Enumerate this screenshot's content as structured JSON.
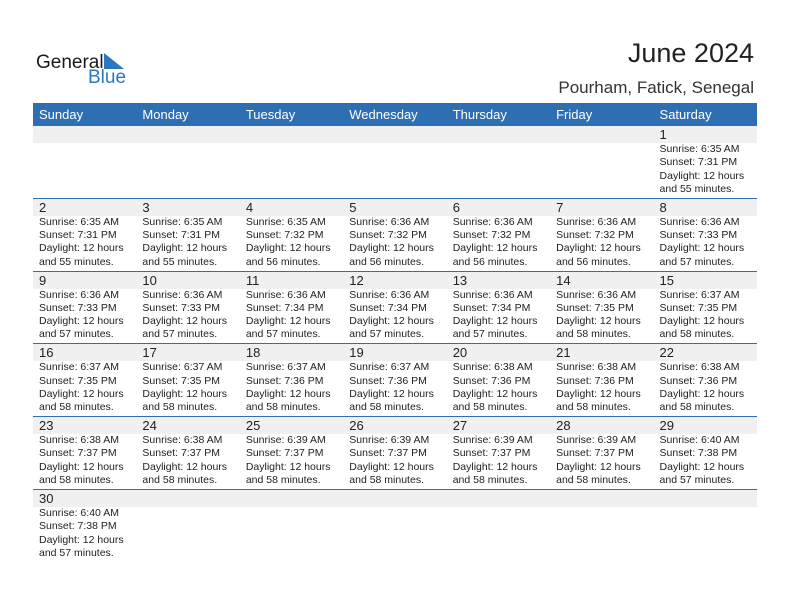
{
  "logo": {
    "general": "General",
    "blue": "Blue"
  },
  "header": {
    "title": "June 2024",
    "location": "Pourham, Fatick, Senegal"
  },
  "weekdays": [
    "Sunday",
    "Monday",
    "Tuesday",
    "Wednesday",
    "Thursday",
    "Friday",
    "Saturday"
  ],
  "accent_color": "#2e6fb3",
  "first_weekday_index": 6,
  "days": [
    {
      "day": "1",
      "sunrise": "Sunrise: 6:35 AM",
      "sunset": "Sunset: 7:31 PM",
      "daylight1": "Daylight: 12 hours",
      "daylight2": "and 55 minutes."
    },
    {
      "day": "2",
      "sunrise": "Sunrise: 6:35 AM",
      "sunset": "Sunset: 7:31 PM",
      "daylight1": "Daylight: 12 hours",
      "daylight2": "and 55 minutes."
    },
    {
      "day": "3",
      "sunrise": "Sunrise: 6:35 AM",
      "sunset": "Sunset: 7:31 PM",
      "daylight1": "Daylight: 12 hours",
      "daylight2": "and 55 minutes."
    },
    {
      "day": "4",
      "sunrise": "Sunrise: 6:35 AM",
      "sunset": "Sunset: 7:32 PM",
      "daylight1": "Daylight: 12 hours",
      "daylight2": "and 56 minutes."
    },
    {
      "day": "5",
      "sunrise": "Sunrise: 6:36 AM",
      "sunset": "Sunset: 7:32 PM",
      "daylight1": "Daylight: 12 hours",
      "daylight2": "and 56 minutes."
    },
    {
      "day": "6",
      "sunrise": "Sunrise: 6:36 AM",
      "sunset": "Sunset: 7:32 PM",
      "daylight1": "Daylight: 12 hours",
      "daylight2": "and 56 minutes."
    },
    {
      "day": "7",
      "sunrise": "Sunrise: 6:36 AM",
      "sunset": "Sunset: 7:32 PM",
      "daylight1": "Daylight: 12 hours",
      "daylight2": "and 56 minutes."
    },
    {
      "day": "8",
      "sunrise": "Sunrise: 6:36 AM",
      "sunset": "Sunset: 7:33 PM",
      "daylight1": "Daylight: 12 hours",
      "daylight2": "and 57 minutes."
    },
    {
      "day": "9",
      "sunrise": "Sunrise: 6:36 AM",
      "sunset": "Sunset: 7:33 PM",
      "daylight1": "Daylight: 12 hours",
      "daylight2": "and 57 minutes."
    },
    {
      "day": "10",
      "sunrise": "Sunrise: 6:36 AM",
      "sunset": "Sunset: 7:33 PM",
      "daylight1": "Daylight: 12 hours",
      "daylight2": "and 57 minutes."
    },
    {
      "day": "11",
      "sunrise": "Sunrise: 6:36 AM",
      "sunset": "Sunset: 7:34 PM",
      "daylight1": "Daylight: 12 hours",
      "daylight2": "and 57 minutes."
    },
    {
      "day": "12",
      "sunrise": "Sunrise: 6:36 AM",
      "sunset": "Sunset: 7:34 PM",
      "daylight1": "Daylight: 12 hours",
      "daylight2": "and 57 minutes."
    },
    {
      "day": "13",
      "sunrise": "Sunrise: 6:36 AM",
      "sunset": "Sunset: 7:34 PM",
      "daylight1": "Daylight: 12 hours",
      "daylight2": "and 57 minutes."
    },
    {
      "day": "14",
      "sunrise": "Sunrise: 6:36 AM",
      "sunset": "Sunset: 7:35 PM",
      "daylight1": "Daylight: 12 hours",
      "daylight2": "and 58 minutes."
    },
    {
      "day": "15",
      "sunrise": "Sunrise: 6:37 AM",
      "sunset": "Sunset: 7:35 PM",
      "daylight1": "Daylight: 12 hours",
      "daylight2": "and 58 minutes."
    },
    {
      "day": "16",
      "sunrise": "Sunrise: 6:37 AM",
      "sunset": "Sunset: 7:35 PM",
      "daylight1": "Daylight: 12 hours",
      "daylight2": "and 58 minutes."
    },
    {
      "day": "17",
      "sunrise": "Sunrise: 6:37 AM",
      "sunset": "Sunset: 7:35 PM",
      "daylight1": "Daylight: 12 hours",
      "daylight2": "and 58 minutes."
    },
    {
      "day": "18",
      "sunrise": "Sunrise: 6:37 AM",
      "sunset": "Sunset: 7:36 PM",
      "daylight1": "Daylight: 12 hours",
      "daylight2": "and 58 minutes."
    },
    {
      "day": "19",
      "sunrise": "Sunrise: 6:37 AM",
      "sunset": "Sunset: 7:36 PM",
      "daylight1": "Daylight: 12 hours",
      "daylight2": "and 58 minutes."
    },
    {
      "day": "20",
      "sunrise": "Sunrise: 6:38 AM",
      "sunset": "Sunset: 7:36 PM",
      "daylight1": "Daylight: 12 hours",
      "daylight2": "and 58 minutes."
    },
    {
      "day": "21",
      "sunrise": "Sunrise: 6:38 AM",
      "sunset": "Sunset: 7:36 PM",
      "daylight1": "Daylight: 12 hours",
      "daylight2": "and 58 minutes."
    },
    {
      "day": "22",
      "sunrise": "Sunrise: 6:38 AM",
      "sunset": "Sunset: 7:36 PM",
      "daylight1": "Daylight: 12 hours",
      "daylight2": "and 58 minutes."
    },
    {
      "day": "23",
      "sunrise": "Sunrise: 6:38 AM",
      "sunset": "Sunset: 7:37 PM",
      "daylight1": "Daylight: 12 hours",
      "daylight2": "and 58 minutes."
    },
    {
      "day": "24",
      "sunrise": "Sunrise: 6:38 AM",
      "sunset": "Sunset: 7:37 PM",
      "daylight1": "Daylight: 12 hours",
      "daylight2": "and 58 minutes."
    },
    {
      "day": "25",
      "sunrise": "Sunrise: 6:39 AM",
      "sunset": "Sunset: 7:37 PM",
      "daylight1": "Daylight: 12 hours",
      "daylight2": "and 58 minutes."
    },
    {
      "day": "26",
      "sunrise": "Sunrise: 6:39 AM",
      "sunset": "Sunset: 7:37 PM",
      "daylight1": "Daylight: 12 hours",
      "daylight2": "and 58 minutes."
    },
    {
      "day": "27",
      "sunrise": "Sunrise: 6:39 AM",
      "sunset": "Sunset: 7:37 PM",
      "daylight1": "Daylight: 12 hours",
      "daylight2": "and 58 minutes."
    },
    {
      "day": "28",
      "sunrise": "Sunrise: 6:39 AM",
      "sunset": "Sunset: 7:37 PM",
      "daylight1": "Daylight: 12 hours",
      "daylight2": "and 58 minutes."
    },
    {
      "day": "29",
      "sunrise": "Sunrise: 6:40 AM",
      "sunset": "Sunset: 7:38 PM",
      "daylight1": "Daylight: 12 hours",
      "daylight2": "and 57 minutes."
    },
    {
      "day": "30",
      "sunrise": "Sunrise: 6:40 AM",
      "sunset": "Sunset: 7:38 PM",
      "daylight1": "Daylight: 12 hours",
      "daylight2": "and 57 minutes."
    }
  ]
}
